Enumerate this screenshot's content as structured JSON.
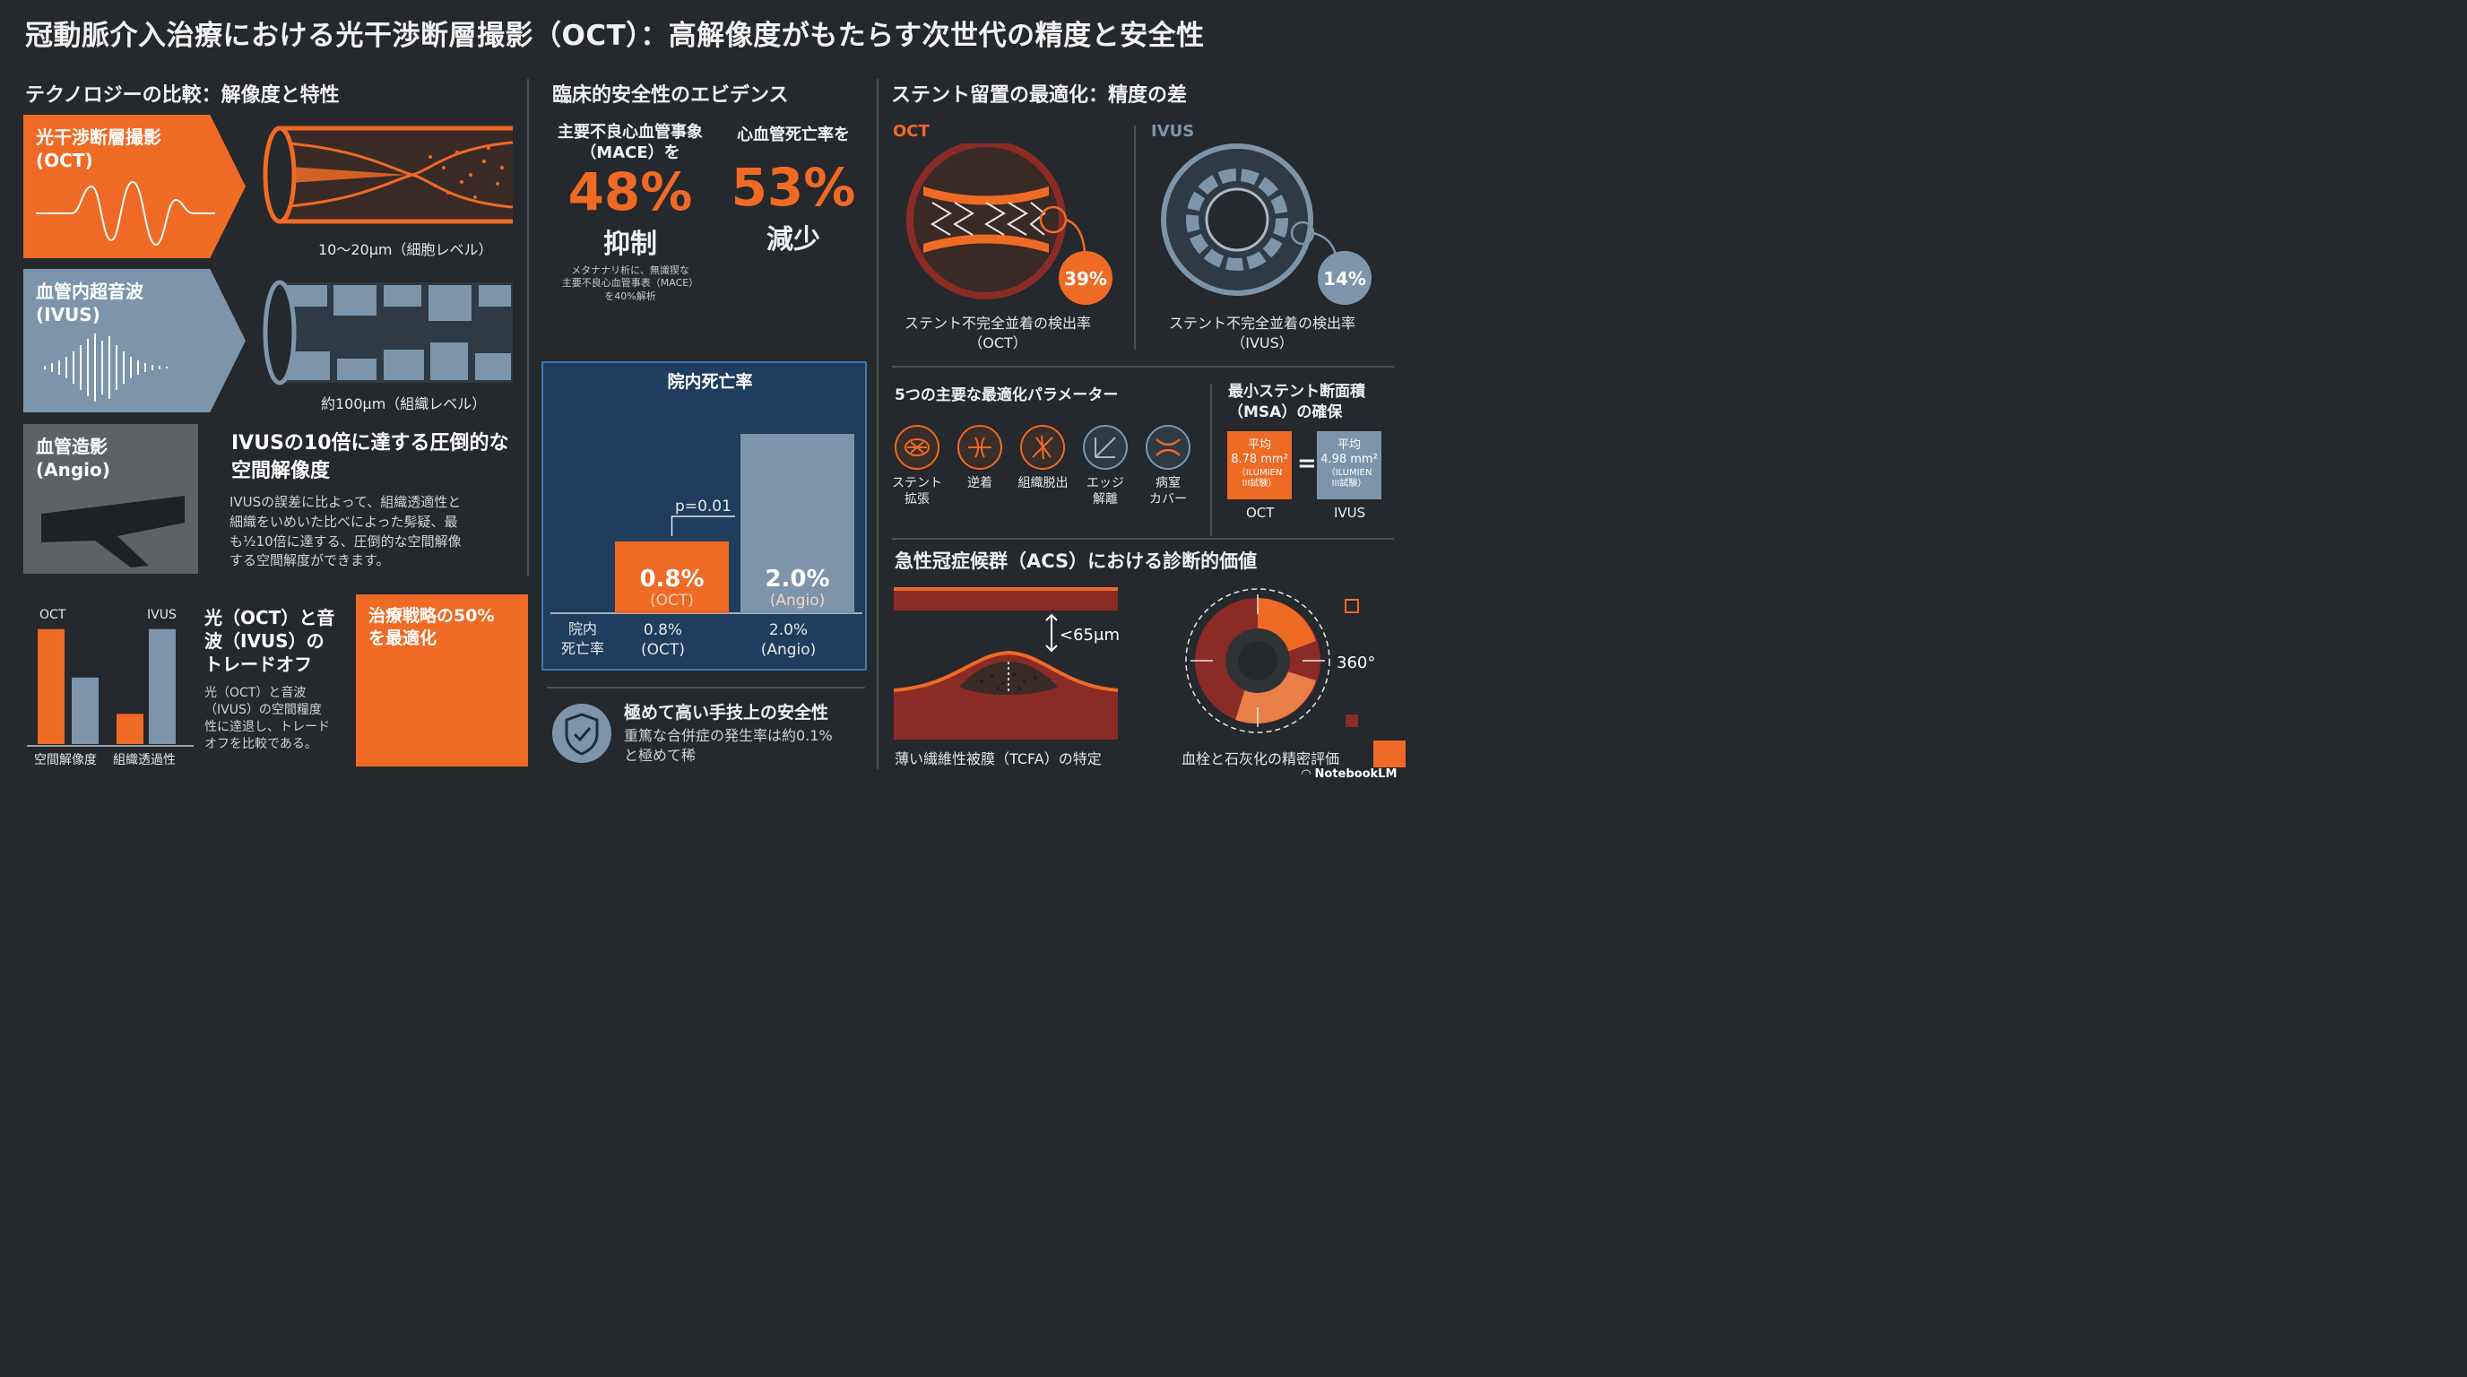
{
  "title": "冠動脈介入治療における光干渉断層撮影（OCT）：高解像度がもたらす次世代の精度と安全性",
  "left": {
    "header": "テクノロジーの比較：解像度と特性",
    "oct_card": {
      "line1": "光干渉断層撮影",
      "line2": "(OCT)",
      "caption": "10〜20μm（細胞レベル）"
    },
    "ivus_card": {
      "line1": "血管内超音波",
      "line2": "(IVUS)",
      "caption": "約100μm（組織レベル）"
    },
    "angio_card": {
      "line1": "血管造影",
      "line2": "(Angio)"
    },
    "resolution_title": "IVUSの10倍に達する圧倒的な空間解像度",
    "resolution_body": [
      "IVUSの誤差に比よって、組織透適性と",
      "細織をいめいた比べによった髣疑、最",
      "も½10倍に達する、圧倒的な空間解像",
      "する空間解度ができます。"
    ],
    "mini_chart": {
      "label_oct": "OCT",
      "label_ivus": "IVUS",
      "xlabel_left": "空間解像度",
      "xlabel_right": "組織透過性"
    },
    "tradeoff_title": [
      "光（OCT）と音",
      "波（IVUS）の",
      "トレードオフ"
    ],
    "tradeoff_body": [
      "光（OCT）と音波",
      "（IVUS）の空間糧度",
      "性に逹退し、トレード",
      "オフを比較である。"
    ],
    "strategy_box": [
      "治療戦略の50%",
      "を最適化"
    ]
  },
  "middle": {
    "header": "臨床的安全性のエビデンス",
    "mace": {
      "label1": "主要不良心血管事象",
      "label2": "（MACE）を",
      "value": "48%",
      "verb": "抑制",
      "note": [
        "メタナナリ析に、無識猰な",
        "主要不良心血管事表（MACE）",
        "を40%解析"
      ]
    },
    "cardiac_death": {
      "label": "心血管死亡率を",
      "value": "53%",
      "verb": "減少"
    },
    "mortality_chart": {
      "title": "院内死亡率",
      "pvalue": "p=0.01",
      "row_label": [
        "院内",
        "死亡率"
      ]
    },
    "safety": {
      "title": "極めて高い手技上の安全性",
      "body": [
        "重篤な合併症の発生率は約0.1%",
        "と極めて稀"
      ]
    }
  },
  "right": {
    "header": "ステント留置の最適化：精度の差",
    "oct": {
      "label": "OCT",
      "value": "39%",
      "caption": [
        "ステント不完全並着の検出率",
        "（OCT）"
      ]
    },
    "ivus": {
      "label": "IVUS",
      "value": "14%",
      "caption": [
        "ステント不完全並着の検出率",
        "（IVUS）"
      ]
    },
    "params_title": "5つの主要な最適化パラメーター",
    "params": [
      {
        "label": [
          "ステント",
          "拡張"
        ]
      },
      {
        "label": [
          "逆着",
          ""
        ]
      },
      {
        "label": [
          "組織脱出",
          ""
        ]
      },
      {
        "label": [
          "エッジ",
          "解離"
        ]
      },
      {
        "label": [
          "病窒",
          "カバー"
        ]
      }
    ],
    "msa": {
      "title": [
        "最小ステント断面積",
        "（MSA）の確保"
      ],
      "oct": {
        "l1": "平均",
        "l2": "8.78 mm²",
        "l3": "（ILUMIEN",
        "l4": "III試験）",
        "name": "OCT"
      },
      "eq": "=",
      "ivus": {
        "l1": "平均",
        "l2": "4.98 mm²",
        "l3": "（ILUMIEN",
        "l4": "III試験）",
        "name": "IVUS"
      }
    },
    "acs_title": "急性冠症候群（ACS）における診断的価値",
    "tcfa": {
      "measure": "<65μm",
      "caption": "薄い繊維性被膜（TCFA）の特定"
    },
    "thrombus": {
      "angle": "360°",
      "caption": "血栓と石灰化の精密評価"
    },
    "brand": "NotebookLM"
  },
  "chart_data": [
    {
      "type": "bar",
      "title": "院内死亡率",
      "categories": [
        "OCT",
        "Angio"
      ],
      "values": [
        0.8,
        2.0
      ],
      "value_labels": [
        "0.8%",
        "2.0%"
      ],
      "category_labels": [
        "(OCT)",
        "(Angio)"
      ],
      "annotation": "p=0.01",
      "ylim": [
        0,
        3.0
      ],
      "colors": [
        "#ef6a25",
        "#7d95aa"
      ]
    },
    {
      "type": "bar",
      "categories": [
        "空間解像度",
        "組織透過性"
      ],
      "series": [
        {
          "name": "OCT",
          "values": [
            0.95,
            0.25
          ]
        },
        {
          "name": "IVUS",
          "values": [
            0.55,
            0.95
          ]
        }
      ],
      "colors": [
        "#ef6a25",
        "#7d95aa"
      ],
      "ylim": [
        0,
        1
      ]
    }
  ],
  "colors": {
    "orange": "#ef6a25",
    "blue": "#7d95aa",
    "navy": "#1f3d5e",
    "dark": "#25282c",
    "red": "#8a2b26"
  }
}
